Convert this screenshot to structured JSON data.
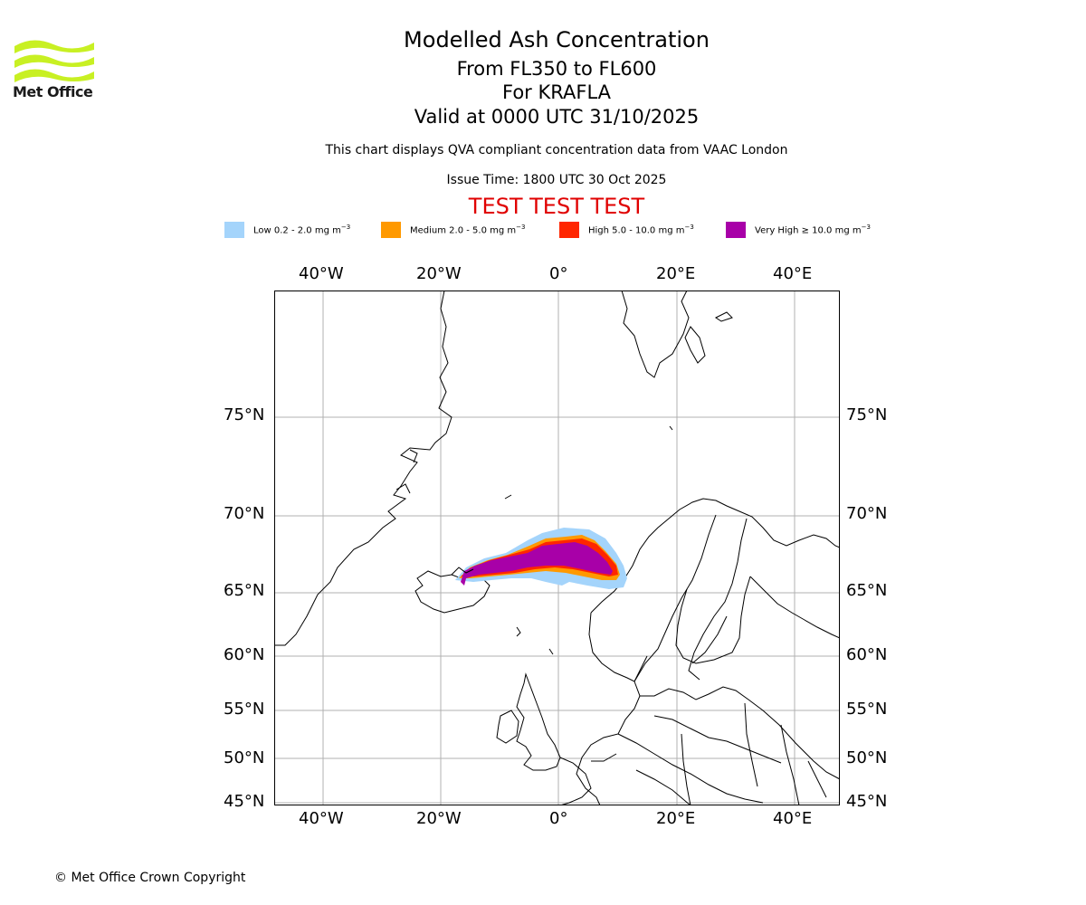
{
  "logo": {
    "text": "Met Office",
    "color": "#c8f023"
  },
  "title": {
    "line1": "Modelled Ash Concentration",
    "line2": "From FL350 to FL600",
    "line3": "For KRAFLA",
    "line4": "Valid at 0000 UTC 31/10/2025"
  },
  "subtitle": "This chart displays QVA compliant concentration data from VAAC London",
  "issue_time": "Issue Time: 1800 UTC 30 Oct 2025",
  "test_banner": "TEST TEST TEST",
  "legend": [
    {
      "label": "Low 0.2 - 2.0 mg m",
      "unit_exp": "−3",
      "color": "#a4d4fb"
    },
    {
      "label": "Medium 2.0 - 5.0 mg m",
      "unit_exp": "−3",
      "color": "#ff9900"
    },
    {
      "label": "High 5.0 - 10.0 mg m",
      "unit_exp": "−3",
      "color": "#ff2600"
    },
    {
      "label": "Very High ≥ 10.0 mg m",
      "unit_exp": "−3",
      "color": "#a800a8"
    }
  ],
  "map": {
    "lon_ticks": [
      "40°W",
      "20°W",
      "0°",
      "20°E",
      "40°E"
    ],
    "lat_ticks": [
      "75°N",
      "70°N",
      "65°N",
      "60°N",
      "55°N",
      "50°N",
      "45°N"
    ]
  },
  "copyright": "© Met Office Crown Copyright"
}
